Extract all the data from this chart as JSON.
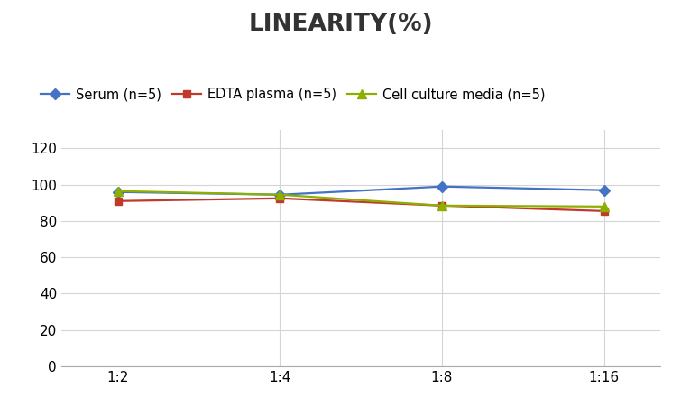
{
  "title": "LINEARITY(%)",
  "title_fontsize": 19,
  "title_fontweight": "bold",
  "title_color": "#333333",
  "x_labels": [
    "1:2",
    "1:4",
    "1:8",
    "1:16"
  ],
  "x_positions": [
    0,
    1,
    2,
    3
  ],
  "series": [
    {
      "label": "Serum (n=5)",
      "values": [
        96.0,
        94.5,
        99.0,
        97.0
      ],
      "color": "#4472C4",
      "marker": "D",
      "markersize": 6,
      "linewidth": 1.6
    },
    {
      "label": "EDTA plasma (n=5)",
      "values": [
        91.0,
        92.5,
        88.5,
        85.5
      ],
      "color": "#C0392B",
      "marker": "s",
      "markersize": 6,
      "linewidth": 1.6
    },
    {
      "label": "Cell culture media (n=5)",
      "values": [
        96.5,
        94.5,
        88.5,
        88.0
      ],
      "color": "#8DB000",
      "marker": "^",
      "markersize": 7,
      "linewidth": 1.6
    }
  ],
  "ylim": [
    0,
    130
  ],
  "yticks": [
    0,
    20,
    40,
    60,
    80,
    100,
    120
  ],
  "background_color": "#ffffff",
  "grid_color": "#d5d5d5",
  "tick_fontsize": 11,
  "legend_fontsize": 10.5
}
